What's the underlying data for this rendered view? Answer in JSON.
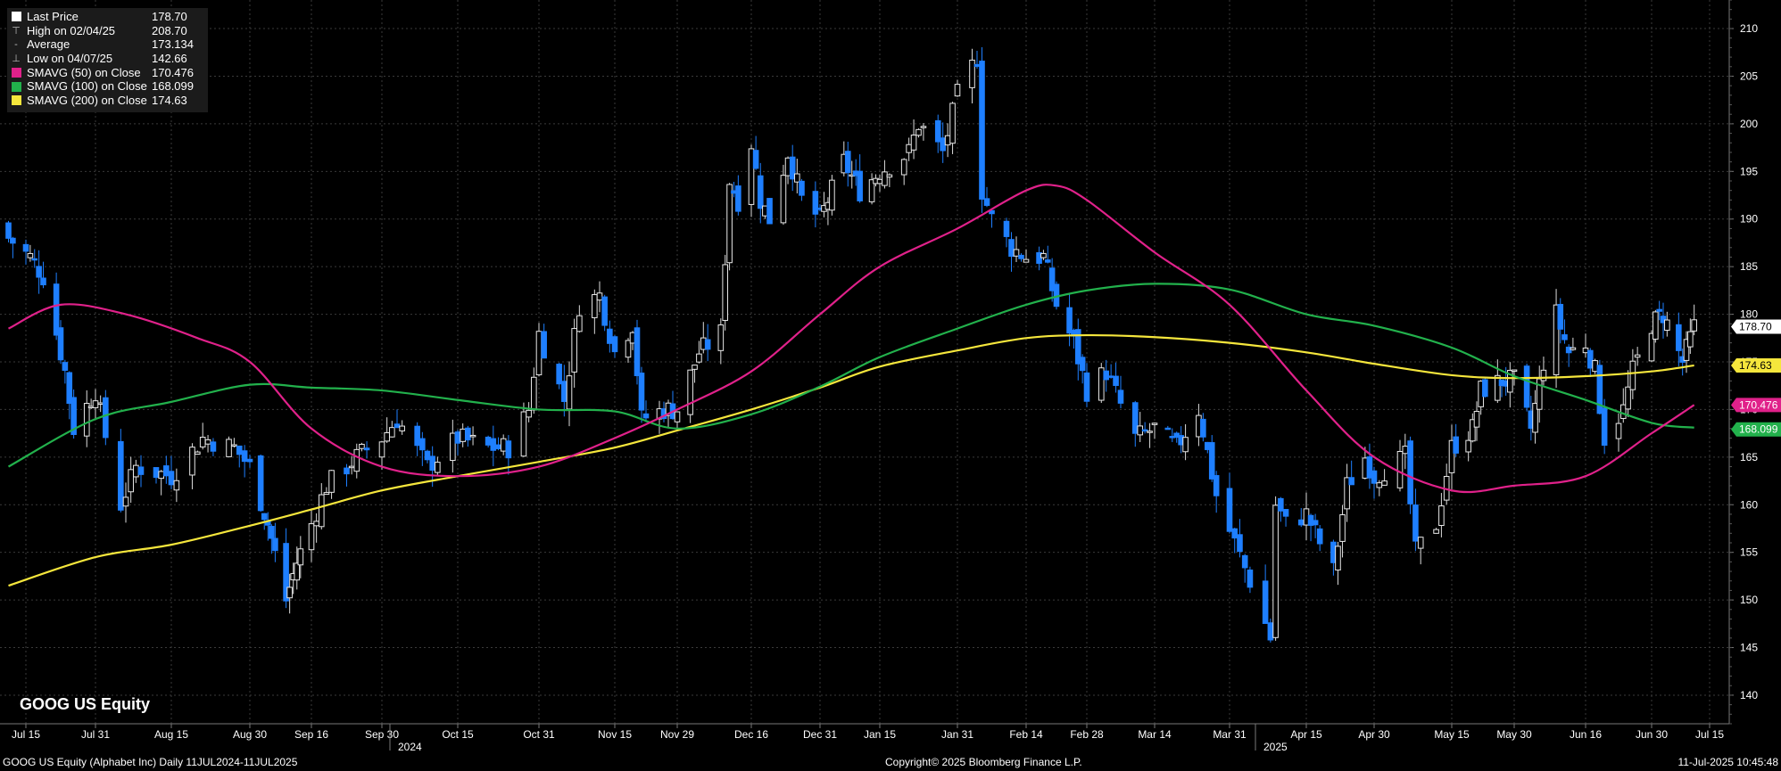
{
  "chart_data": {
    "type": "candlestick",
    "ticker_title": "GOOG US Equity",
    "legend": [
      {
        "label": "Last Price",
        "value": "178.70",
        "icon": "white-square",
        "color": "#ffffff"
      },
      {
        "label": "High on 02/04/25",
        "value": "208.70",
        "icon": "high-marker",
        "color": "#cccccc"
      },
      {
        "label": "Average",
        "value": "173.134",
        "icon": "average-marker",
        "color": "#cccccc"
      },
      {
        "label": "Low on 04/07/25",
        "value": "142.66",
        "icon": "low-marker",
        "color": "#cccccc"
      },
      {
        "label": "SMAVG (50)  on Close",
        "value": "170.476",
        "icon": "square",
        "color": "#e0218a"
      },
      {
        "label": "SMAVG (100)  on Close",
        "value": "168.099",
        "icon": "square",
        "color": "#22b14c"
      },
      {
        "label": "SMAVG (200)  on Close",
        "value": "174.63",
        "icon": "square",
        "color": "#f5e63c"
      }
    ],
    "y_axis": {
      "min": 137,
      "max": 213,
      "ticks": [
        140,
        145,
        150,
        155,
        160,
        165,
        170,
        175,
        180,
        185,
        190,
        195,
        200,
        205,
        210
      ],
      "side": "right"
    },
    "x_axis": {
      "ticks": [
        "Jul 15",
        "Jul 31",
        "Aug 15",
        "Aug 30",
        "Sep 16",
        "Sep 30",
        "Oct 15",
        "Oct 31",
        "Nov 15",
        "Nov 29",
        "Dec 16",
        "Dec 31",
        "Jan 15",
        "Jan 31",
        "Feb 14",
        "Feb 28",
        "Mar 14",
        "Mar 31",
        "Apr 15",
        "Apr 30",
        "May 15",
        "May 30",
        "Jun 16",
        "Jun 30",
        "Jul 15"
      ],
      "years": [
        {
          "label": "2024",
          "after_tick": "Sep 30"
        },
        {
          "label": "2025",
          "after_tick": "Mar 31"
        }
      ]
    },
    "price_labels": [
      {
        "value": 178.7,
        "text": "178.70",
        "bg": "#ffffff",
        "fg": "#000000"
      },
      {
        "value": 174.63,
        "text": "174.63",
        "bg": "#f5e63c",
        "fg": "#000000"
      },
      {
        "value": 170.476,
        "text": "170.476",
        "bg": "#e0218a",
        "fg": "#ffffff"
      },
      {
        "value": 168.099,
        "text": "168.099",
        "bg": "#22b14c",
        "fg": "#ffffff"
      }
    ],
    "colors": {
      "up": "#ffffff",
      "down": "#1e7fff",
      "grid": "#333333",
      "axis": "#666666"
    },
    "price_anchors": [
      {
        "date": "2024-07-11",
        "c": 188
      },
      {
        "date": "2024-07-16",
        "c": 186
      },
      {
        "date": "2024-07-19",
        "c": 184
      },
      {
        "date": "2024-07-24",
        "c": 174
      },
      {
        "date": "2024-07-26",
        "c": 168
      },
      {
        "date": "2024-07-31",
        "c": 172
      },
      {
        "date": "2024-08-05",
        "c": 160
      },
      {
        "date": "2024-08-08",
        "c": 164
      },
      {
        "date": "2024-08-15",
        "c": 163
      },
      {
        "date": "2024-08-21",
        "c": 167
      },
      {
        "date": "2024-08-27",
        "c": 166
      },
      {
        "date": "2024-08-30",
        "c": 164
      },
      {
        "date": "2024-09-04",
        "c": 158
      },
      {
        "date": "2024-09-09",
        "c": 150
      },
      {
        "date": "2024-09-12",
        "c": 154
      },
      {
        "date": "2024-09-16",
        "c": 158
      },
      {
        "date": "2024-09-19",
        "c": 162
      },
      {
        "date": "2024-09-25",
        "c": 165
      },
      {
        "date": "2024-09-30",
        "c": 167
      },
      {
        "date": "2024-10-03",
        "c": 169
      },
      {
        "date": "2024-10-09",
        "c": 164
      },
      {
        "date": "2024-10-15",
        "c": 167
      },
      {
        "date": "2024-10-21",
        "c": 166
      },
      {
        "date": "2024-10-25",
        "c": 166
      },
      {
        "date": "2024-10-29",
        "c": 170
      },
      {
        "date": "2024-10-31",
        "c": 178
      },
      {
        "date": "2024-11-05",
        "c": 171
      },
      {
        "date": "2024-11-08",
        "c": 181
      },
      {
        "date": "2024-11-12",
        "c": 182
      },
      {
        "date": "2024-11-15",
        "c": 176
      },
      {
        "date": "2024-11-19",
        "c": 179
      },
      {
        "date": "2024-11-21",
        "c": 169
      },
      {
        "date": "2024-11-26",
        "c": 170
      },
      {
        "date": "2024-11-29",
        "c": 170
      },
      {
        "date": "2024-12-04",
        "c": 176
      },
      {
        "date": "2024-12-09",
        "c": 178
      },
      {
        "date": "2024-12-11",
        "c": 194
      },
      {
        "date": "2024-12-13",
        "c": 192
      },
      {
        "date": "2024-12-16",
        "c": 198
      },
      {
        "date": "2024-12-18",
        "c": 192
      },
      {
        "date": "2024-12-20",
        "c": 190
      },
      {
        "date": "2024-12-24",
        "c": 197
      },
      {
        "date": "2024-12-27",
        "c": 192
      },
      {
        "date": "2024-12-31",
        "c": 190
      },
      {
        "date": "2025-01-06",
        "c": 196
      },
      {
        "date": "2025-01-10",
        "c": 193
      },
      {
        "date": "2025-01-15",
        "c": 195
      },
      {
        "date": "2025-01-21",
        "c": 197
      },
      {
        "date": "2025-01-23",
        "c": 200
      },
      {
        "date": "2025-01-28",
        "c": 197
      },
      {
        "date": "2025-01-31",
        "c": 203
      },
      {
        "date": "2025-02-04",
        "c": 207
      },
      {
        "date": "2025-02-05",
        "c": 193
      },
      {
        "date": "2025-02-07",
        "c": 190
      },
      {
        "date": "2025-02-11",
        "c": 187
      },
      {
        "date": "2025-02-14",
        "c": 186
      },
      {
        "date": "2025-02-18",
        "c": 186
      },
      {
        "date": "2025-02-21",
        "c": 181
      },
      {
        "date": "2025-02-25",
        "c": 177
      },
      {
        "date": "2025-02-28",
        "c": 172
      },
      {
        "date": "2025-03-04",
        "c": 174
      },
      {
        "date": "2025-03-10",
        "c": 167
      },
      {
        "date": "2025-03-14",
        "c": 168
      },
      {
        "date": "2025-03-19",
        "c": 166
      },
      {
        "date": "2025-03-24",
        "c": 170
      },
      {
        "date": "2025-03-28",
        "c": 161
      },
      {
        "date": "2025-04-01",
        "c": 156
      },
      {
        "date": "2025-04-04",
        "c": 152
      },
      {
        "date": "2025-04-08",
        "c": 146
      },
      {
        "date": "2025-04-09",
        "c": 160
      },
      {
        "date": "2025-04-11",
        "c": 158
      },
      {
        "date": "2025-04-15",
        "c": 159
      },
      {
        "date": "2025-04-21",
        "c": 153
      },
      {
        "date": "2025-04-24",
        "c": 162
      },
      {
        "date": "2025-04-28",
        "c": 165
      },
      {
        "date": "2025-04-30",
        "c": 163
      },
      {
        "date": "2025-05-06",
        "c": 165
      },
      {
        "date": "2025-05-08",
        "c": 155
      },
      {
        "date": "2025-05-12",
        "c": 158
      },
      {
        "date": "2025-05-15",
        "c": 166
      },
      {
        "date": "2025-05-20",
        "c": 168
      },
      {
        "date": "2025-05-22",
        "c": 172
      },
      {
        "date": "2025-05-27",
        "c": 173
      },
      {
        "date": "2025-05-30",
        "c": 173
      },
      {
        "date": "2025-06-03",
        "c": 168
      },
      {
        "date": "2025-06-06",
        "c": 175
      },
      {
        "date": "2025-06-09",
        "c": 180
      },
      {
        "date": "2025-06-12",
        "c": 176
      },
      {
        "date": "2025-06-16",
        "c": 177
      },
      {
        "date": "2025-06-18",
        "c": 174
      },
      {
        "date": "2025-06-20",
        "c": 167
      },
      {
        "date": "2025-06-24",
        "c": 170
      },
      {
        "date": "2025-06-26",
        "c": 174
      },
      {
        "date": "2025-06-30",
        "c": 179
      },
      {
        "date": "2025-07-03",
        "c": 180
      },
      {
        "date": "2025-07-08",
        "c": 175
      },
      {
        "date": "2025-07-11",
        "c": 178.7
      }
    ],
    "sma50": [
      {
        "date": "2024-07-11",
        "v": 178.5
      },
      {
        "date": "2024-07-23",
        "v": 181
      },
      {
        "date": "2024-08-06",
        "v": 180
      },
      {
        "date": "2024-08-20",
        "v": 177.5
      },
      {
        "date": "2024-08-30",
        "v": 175
      },
      {
        "date": "2024-09-16",
        "v": 168
      },
      {
        "date": "2024-09-30",
        "v": 164
      },
      {
        "date": "2024-10-15",
        "v": 163
      },
      {
        "date": "2024-10-31",
        "v": 164
      },
      {
        "date": "2024-11-15",
        "v": 167
      },
      {
        "date": "2024-11-29",
        "v": 170
      },
      {
        "date": "2024-12-16",
        "v": 174
      },
      {
        "date": "2024-12-31",
        "v": 180
      },
      {
        "date": "2025-01-15",
        "v": 185
      },
      {
        "date": "2025-01-31",
        "v": 189
      },
      {
        "date": "2025-02-14",
        "v": 193
      },
      {
        "date": "2025-02-21",
        "v": 193.5
      },
      {
        "date": "2025-02-28",
        "v": 192
      },
      {
        "date": "2025-03-14",
        "v": 186.5
      },
      {
        "date": "2025-03-31",
        "v": 181
      },
      {
        "date": "2025-04-15",
        "v": 172
      },
      {
        "date": "2025-04-30",
        "v": 165
      },
      {
        "date": "2025-05-15",
        "v": 161.5
      },
      {
        "date": "2025-05-30",
        "v": 162
      },
      {
        "date": "2025-06-16",
        "v": 163
      },
      {
        "date": "2025-06-30",
        "v": 167.5
      },
      {
        "date": "2025-07-11",
        "v": 170.476
      }
    ],
    "sma100": [
      {
        "date": "2024-07-11",
        "v": 164
      },
      {
        "date": "2024-07-31",
        "v": 169
      },
      {
        "date": "2024-08-15",
        "v": 170.8
      },
      {
        "date": "2024-08-30",
        "v": 172.6
      },
      {
        "date": "2024-09-16",
        "v": 172.3
      },
      {
        "date": "2024-09-30",
        "v": 172
      },
      {
        "date": "2024-10-15",
        "v": 171
      },
      {
        "date": "2024-10-31",
        "v": 170
      },
      {
        "date": "2024-11-15",
        "v": 169.8
      },
      {
        "date": "2024-11-29",
        "v": 168
      },
      {
        "date": "2024-12-16",
        "v": 169.5
      },
      {
        "date": "2024-12-31",
        "v": 172.4
      },
      {
        "date": "2025-01-15",
        "v": 175.5
      },
      {
        "date": "2025-01-31",
        "v": 178.5
      },
      {
        "date": "2025-02-14",
        "v": 181
      },
      {
        "date": "2025-02-28",
        "v": 182.5
      },
      {
        "date": "2025-03-14",
        "v": 183.2
      },
      {
        "date": "2025-03-31",
        "v": 182.6
      },
      {
        "date": "2025-04-15",
        "v": 180
      },
      {
        "date": "2025-04-30",
        "v": 178.8
      },
      {
        "date": "2025-05-15",
        "v": 176.5
      },
      {
        "date": "2025-05-30",
        "v": 173.5
      },
      {
        "date": "2025-06-16",
        "v": 171
      },
      {
        "date": "2025-06-30",
        "v": 168.6
      },
      {
        "date": "2025-07-11",
        "v": 168.099
      }
    ],
    "sma200": [
      {
        "date": "2024-07-11",
        "v": 151.5
      },
      {
        "date": "2024-07-31",
        "v": 154.5
      },
      {
        "date": "2024-08-15",
        "v": 155.8
      },
      {
        "date": "2024-08-30",
        "v": 157.8
      },
      {
        "date": "2024-09-16",
        "v": 159.5
      },
      {
        "date": "2024-09-30",
        "v": 161.5
      },
      {
        "date": "2024-10-15",
        "v": 163
      },
      {
        "date": "2024-10-31",
        "v": 164.5
      },
      {
        "date": "2024-11-15",
        "v": 166
      },
      {
        "date": "2024-11-29",
        "v": 167.8
      },
      {
        "date": "2024-12-16",
        "v": 170
      },
      {
        "date": "2024-12-31",
        "v": 172.3
      },
      {
        "date": "2025-01-15",
        "v": 174.5
      },
      {
        "date": "2025-01-31",
        "v": 176.2
      },
      {
        "date": "2025-02-14",
        "v": 177.5
      },
      {
        "date": "2025-02-28",
        "v": 177.8
      },
      {
        "date": "2025-03-14",
        "v": 177.6
      },
      {
        "date": "2025-03-31",
        "v": 177
      },
      {
        "date": "2025-04-15",
        "v": 176
      },
      {
        "date": "2025-04-30",
        "v": 174.8
      },
      {
        "date": "2025-05-15",
        "v": 173.6
      },
      {
        "date": "2025-05-30",
        "v": 173.3
      },
      {
        "date": "2025-06-16",
        "v": 173.5
      },
      {
        "date": "2025-06-30",
        "v": 174
      },
      {
        "date": "2025-07-11",
        "v": 174.63
      }
    ]
  },
  "footer": {
    "left": "GOOG US Equity (Alphabet Inc)  Daily 11JUL2024-11JUL2025",
    "center": "Copyright© 2025 Bloomberg Finance L.P.",
    "right": "11-Jul-2025 10:45:48"
  }
}
